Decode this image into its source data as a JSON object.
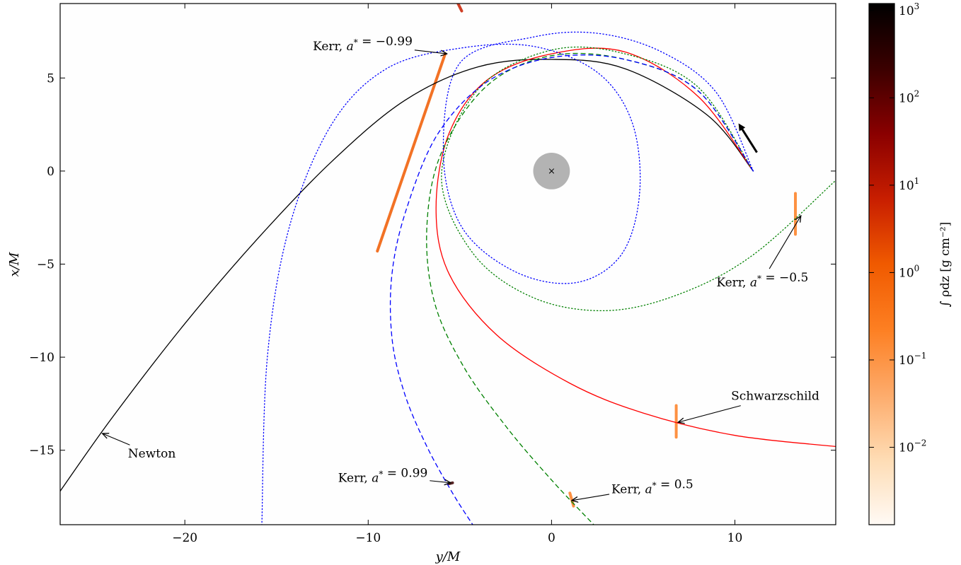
{
  "chart_data": {
    "type": "line",
    "xlabel": "y/M",
    "ylabel": "x/M",
    "xlim": [
      -26.8,
      15.5
    ],
    "ylim": [
      -19,
      9
    ],
    "xticks": [
      -20,
      -10,
      0,
      10
    ],
    "yticks": [
      5,
      0,
      -5,
      -10,
      -15
    ],
    "xtick_labels": [
      "−20",
      "−10",
      "0",
      "10"
    ],
    "ytick_labels": [
      "5",
      "0",
      "−5",
      "−10",
      "−15"
    ],
    "grid": false,
    "colorbar": {
      "label": "∫ ρdz [g cm⁻²]",
      "scale": "log",
      "range": [
        0.0013,
        1200
      ],
      "ticks": [
        0.01,
        0.1,
        1,
        10,
        100,
        1000
      ],
      "tick_labels": [
        {
          "base": "10",
          "exp": "−2"
        },
        {
          "base": "10",
          "exp": "−1"
        },
        {
          "base": "10",
          "exp": "0"
        },
        {
          "base": "10",
          "exp": "1"
        },
        {
          "base": "10",
          "exp": "2"
        },
        {
          "base": "10",
          "exp": "3"
        }
      ],
      "colors": [
        "#fffaf5",
        "#fedcb4",
        "#fdab6b",
        "#fd7f22",
        "#f05a00",
        "#c81e00",
        "#8a0000",
        "#3b0000",
        "#000000"
      ]
    },
    "series": [
      {
        "style": "solid",
        "color": "#000000",
        "x": [
          11.0,
          8.5,
          4.0,
          0.0,
          -4.0,
          -8.0,
          -12.0,
          -16.0,
          -20.0,
          -24.0,
          -26.8
        ],
        "y": [
          0.0,
          3.0,
          5.5,
          6.0,
          5.6,
          3.8,
          0.5,
          -3.6,
          -8.2,
          -13.3,
          -17.2
        ]
      },
      {
        "style": "solid",
        "color": "#ff0000",
        "x": [
          11.0,
          8.0,
          4.0,
          0.0,
          -3.5,
          -5.6,
          -6.3,
          -5.6,
          -3.0,
          1.0,
          5.0,
          10.0,
          15.5
        ],
        "y": [
          0.0,
          4.0,
          6.4,
          6.3,
          4.9,
          2.0,
          -2.0,
          -5.5,
          -8.8,
          -11.4,
          -13.0,
          -14.2,
          -14.8
        ]
      },
      {
        "style": "dotted",
        "color": "#008000",
        "x": [
          11.0,
          8.0,
          4.0,
          0.0,
          -4.0,
          -6.0,
          -4.3,
          -1.0,
          3.0,
          7.0,
          11.0,
          15.5
        ],
        "y": [
          0.0,
          4.5,
          6.3,
          6.5,
          4.4,
          -0.2,
          -4.4,
          -6.8,
          -7.5,
          -6.6,
          -4.5,
          -0.5
        ]
      },
      {
        "style": "dashed",
        "color": "#008000",
        "x": [
          11.0,
          8.0,
          4.0,
          0.0,
          -3.5,
          -6.0,
          -6.8,
          -6.4,
          -4.8,
          -2.5,
          0.0,
          2.3
        ],
        "y": [
          0.0,
          4.3,
          6.0,
          6.2,
          4.6,
          1.0,
          -3.0,
          -7.0,
          -10.5,
          -13.7,
          -16.6,
          -19.0
        ]
      },
      {
        "style": "dotted",
        "color": "#0000ff",
        "x": [
          11.0,
          9.0,
          6.0,
          2.5,
          -1.0,
          -5.0,
          -5.9,
          -4.9,
          -2.0,
          1.3,
          3.8,
          4.8,
          4.4,
          2.5,
          -1.0,
          -5.0,
          -9.0,
          -12.0,
          -14.3,
          -15.5,
          -15.8
        ],
        "y": [
          0.0,
          4.2,
          6.4,
          7.4,
          7.2,
          5.8,
          1.0,
          -3.0,
          -5.4,
          -6.0,
          -4.5,
          -1.2,
          2.6,
          5.3,
          6.7,
          6.6,
          5.5,
          2.5,
          -3.0,
          -10.0,
          -19.0
        ]
      },
      {
        "style": "dashed",
        "color": "#0000ff",
        "x": [
          11.0,
          8.0,
          4.0,
          0.0,
          -3.5,
          -6.2,
          -7.9,
          -8.7,
          -8.7,
          -8.0,
          -6.8,
          -5.4,
          -4.3
        ],
        "y": [
          0.0,
          4.3,
          6.0,
          6.1,
          4.8,
          2.0,
          -2.0,
          -5.5,
          -9.0,
          -12.0,
          -14.8,
          -17.3,
          -19.0
        ]
      }
    ],
    "blobs": [
      {
        "x": [
          -5.8,
          -9.5
        ],
        "y": [
          6.3,
          -4.3
        ],
        "density": 2.0
      },
      {
        "x": [
          -5.2,
          -4.9
        ],
        "y": [
          9.2,
          8.6
        ],
        "density": 3.0
      },
      {
        "x": [
          13.3,
          13.3
        ],
        "y": [
          -1.2,
          -3.4
        ],
        "density": 0.3
      },
      {
        "x": [
          6.8,
          6.8
        ],
        "y": [
          -12.6,
          -14.3
        ],
        "density": 0.1
      },
      {
        "x": [
          -5.4,
          -5.6
        ],
        "y": [
          -16.75,
          -16.8
        ],
        "density": 200
      },
      {
        "x": [
          1.0,
          1.2
        ],
        "y": [
          -17.3,
          -18.0
        ],
        "density": 0.1
      }
    ],
    "central_object": {
      "x": 0,
      "y": 0,
      "radius": 1.0,
      "marker": "×"
    },
    "direction_arrow": {
      "from": [
        11.2,
        1.0
      ],
      "to": [
        10.3,
        2.4
      ]
    },
    "annotations": [
      {
        "text_parts": [
          "Kerr, ",
          "a*",
          " = −0.99"
        ],
        "text_at": [
          -10.3,
          6.5
        ],
        "point": [
          -5.7,
          6.3
        ]
      },
      {
        "text_parts": [
          "Kerr, ",
          "a*",
          " = −0.5"
        ],
        "text_at": [
          11.5,
          -6.2
        ],
        "point": [
          13.6,
          -2.4
        ]
      },
      {
        "text_parts": [
          "Schwarzschild"
        ],
        "text_at": [
          12.2,
          -12.3
        ],
        "point": [
          6.9,
          -13.5
        ]
      },
      {
        "text_parts": [
          "Newton"
        ],
        "text_at": [
          -21.8,
          -15.4
        ],
        "point": [
          -24.5,
          -14.1
        ]
      },
      {
        "text_parts": [
          "Kerr, ",
          "a*",
          " = 0.99"
        ],
        "text_at": [
          -9.2,
          -16.7
        ],
        "point": [
          -5.5,
          -16.75
        ]
      },
      {
        "text_parts": [
          "Kerr, ",
          "a*",
          " = 0.5"
        ],
        "text_at": [
          5.5,
          -17.3
        ],
        "point": [
          1.1,
          -17.7
        ]
      }
    ]
  }
}
